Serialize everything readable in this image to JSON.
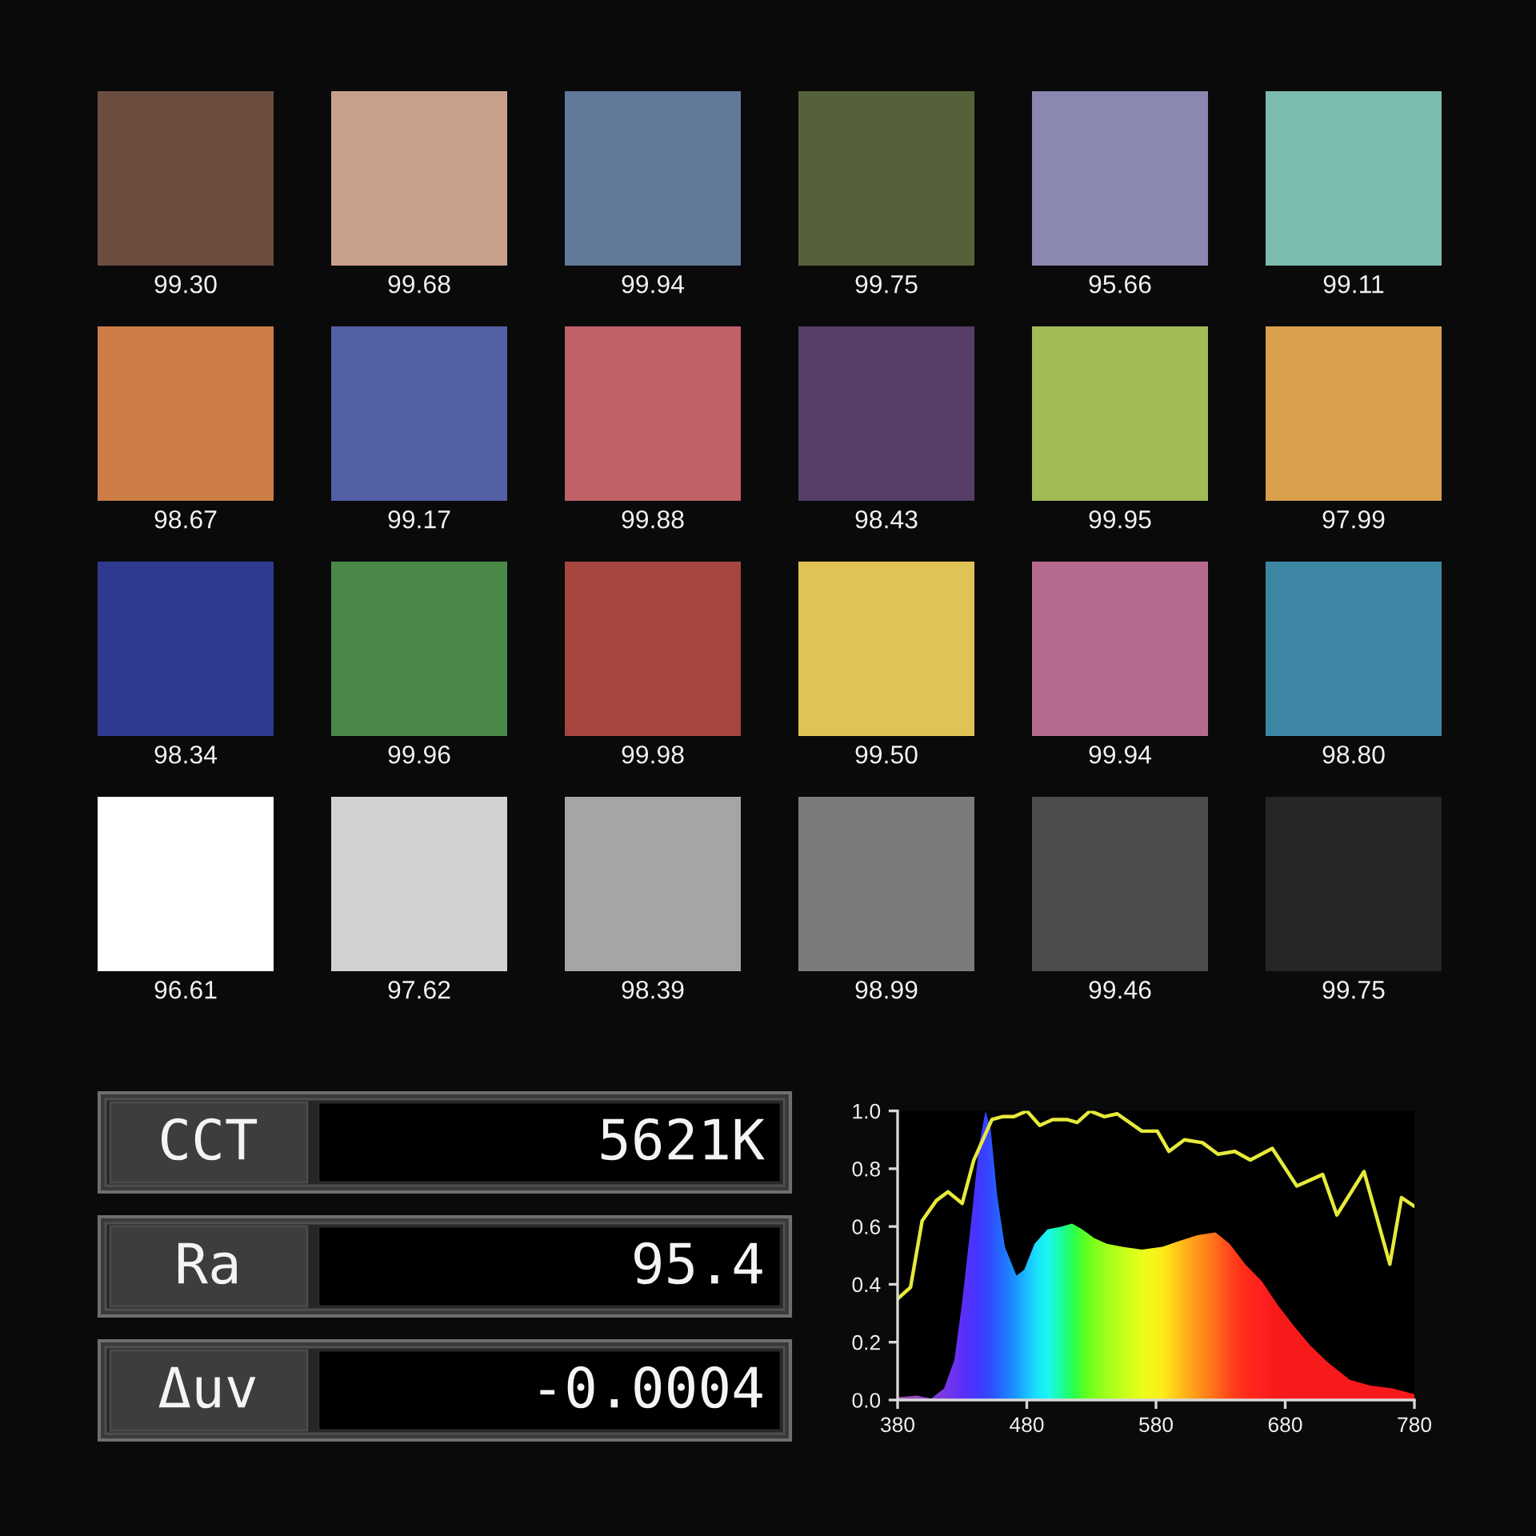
{
  "chart_data": [
    {
      "type": "other",
      "values": [
        99.3,
        99.68,
        99.94,
        99.75,
        95.66,
        99.11,
        98.67,
        99.17,
        99.88,
        98.43,
        99.95,
        97.99,
        98.34,
        99.96,
        99.98,
        99.5,
        99.94,
        98.8,
        96.61,
        97.62,
        98.39,
        98.99,
        99.46,
        99.75
      ],
      "value_labels": [
        "99.30",
        "99.68",
        "99.94",
        "99.75",
        "95.66",
        "99.11",
        "98.67",
        "99.17",
        "99.88",
        "98.43",
        "99.95",
        "97.99",
        "98.34",
        "99.96",
        "99.98",
        "99.50",
        "99.94",
        "98.80",
        "96.61",
        "97.62",
        "98.39",
        "98.99",
        "99.46",
        "99.75"
      ],
      "colors": [
        "#6a4d3f",
        "#c8a08a",
        "#62799a",
        "#556239",
        "#8a88b0",
        "#7bbcae",
        "#cc7d46",
        "#5460a6",
        "#bf6167",
        "#563e67",
        "#a1bb55",
        "#dba04c",
        "#2f3a8f",
        "#4a8847",
        "#a5463f",
        "#e0c355",
        "#b6698f",
        "#3d87a5",
        "#ffffff",
        "#d2d2d2",
        "#a5a5a5",
        "#7b7b7b",
        "#4d4d4d",
        "#262626"
      ]
    },
    {
      "type": "other",
      "categories": [
        "CCT",
        "Ra",
        "Δuv"
      ],
      "values": [
        5621,
        95.4,
        -0.0004
      ],
      "value_labels": [
        "5621K",
        "95.4",
        "-0.0004"
      ]
    },
    {
      "type": "line",
      "xlim": [
        380,
        780
      ],
      "xticks": [
        380,
        480,
        580,
        680,
        780
      ],
      "ylim": [
        0,
        1
      ],
      "yticks": [
        {
          "value": 0,
          "label": "0.0"
        },
        {
          "value": 0.2,
          "label": "0.2"
        },
        {
          "value": 0.4,
          "label": "0.4"
        },
        {
          "value": 0.6,
          "label": "0.6"
        },
        {
          "value": 0.8,
          "label": "0.8"
        },
        {
          "value": 1,
          "label": "1.0"
        }
      ],
      "series": [
        {
          "type": "area",
          "x": [
            380,
            395,
            406,
            416,
            424,
            430,
            437,
            443,
            448,
            452,
            457,
            463,
            472,
            478,
            486,
            496,
            507,
            515,
            523,
            532,
            542,
            554,
            569,
            585,
            598,
            612,
            626,
            637,
            649,
            662,
            674,
            686,
            699,
            713,
            730,
            746,
            763,
            780
          ],
          "values": [
            0.01,
            0.015,
            0.005,
            0.04,
            0.14,
            0.34,
            0.62,
            0.88,
            1.0,
            0.94,
            0.71,
            0.53,
            0.43,
            0.45,
            0.54,
            0.59,
            0.6,
            0.61,
            0.59,
            0.56,
            0.54,
            0.53,
            0.52,
            0.53,
            0.55,
            0.57,
            0.58,
            0.54,
            0.47,
            0.41,
            0.33,
            0.26,
            0.19,
            0.13,
            0.07,
            0.05,
            0.04,
            0.02
          ],
          "colors": [
            "#8a3aa8",
            "#8a36b8",
            "#7a2ad0",
            "#6a22e0",
            "#5a1cf0",
            "#4a18f8",
            "#3a1cff",
            "#2a24ff",
            "#2030ff",
            "#1a3cff",
            "#1050ff",
            "#0868ff",
            "#0090ff",
            "#00b0ff",
            "#00d8ff",
            "#00f8f0",
            "#00ff90",
            "#10ff40",
            "#40ff10",
            "#70ff00",
            "#98ff00",
            "#c0ff00",
            "#eaff00",
            "#ffea00",
            "#ffb800",
            "#ff8800",
            "#ff5a00",
            "#ff3000",
            "#ff1400",
            "#ff0808",
            "#f80000",
            "#f80000",
            "#f80000",
            "#f80000",
            "#f80000",
            "#f80000",
            "#f80000",
            "#f80000"
          ]
        },
        {
          "type": "line",
          "color": "#e6ea3a",
          "x": [
            380,
            390,
            399,
            410,
            419,
            430,
            439,
            447,
            453,
            461,
            470,
            480,
            490,
            500,
            511,
            519,
            529,
            540,
            550,
            569,
            581,
            590,
            602,
            616,
            628,
            641,
            653,
            670,
            689,
            709,
            720,
            741,
            761,
            770,
            780
          ],
          "values": [
            0.35,
            0.39,
            0.62,
            0.69,
            0.72,
            0.68,
            0.83,
            0.91,
            0.97,
            0.98,
            0.98,
            1.0,
            0.95,
            0.97,
            0.97,
            0.96,
            1.0,
            0.98,
            0.99,
            0.93,
            0.93,
            0.86,
            0.9,
            0.89,
            0.85,
            0.86,
            0.83,
            0.87,
            0.74,
            0.78,
            0.64,
            0.79,
            0.47,
            0.7,
            0.67
          ]
        }
      ]
    }
  ]
}
